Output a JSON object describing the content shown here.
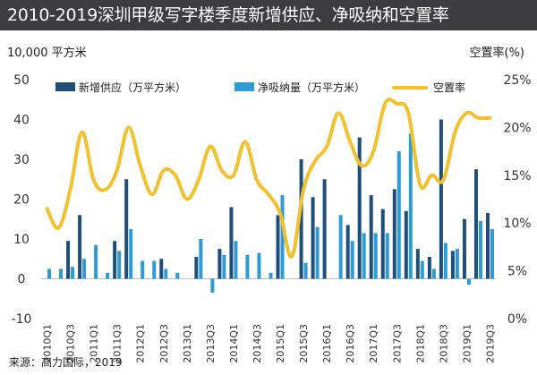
{
  "header": {
    "title": "2010-2019深圳甲级写字楼季度新增供应、净吸纳和空置率"
  },
  "axis_units": {
    "left": "10,000 平方米",
    "right": "空置率(%)"
  },
  "footer": {
    "source": "来源：高力国际，2019"
  },
  "colors": {
    "supply": "#1f4e79",
    "absorption": "#2e9bd6",
    "vacancy": "#f2c12e",
    "title_bg": "#3d3d3f"
  },
  "chart_data": {
    "type": "bar",
    "title": "2010-2019深圳甲级写字楼季度新增供应、净吸纳和空置率",
    "ylabel": "10,000 平方米",
    "y2label": "空置率(%)",
    "ylim": [
      -10,
      50
    ],
    "y2lim": [
      0,
      25
    ],
    "yticks": [
      -10,
      0,
      10,
      20,
      30,
      40,
      50
    ],
    "y2ticks": [
      "0%",
      "5%",
      "10%",
      "15%",
      "20%",
      "25%"
    ],
    "y2tick_values": [
      0,
      5,
      10,
      15,
      20,
      25
    ],
    "legend": [
      "新增供应（万平方米）",
      "净吸纳量（万平方米）",
      "空置率"
    ],
    "categories": [
      "2010Q1",
      "2010Q2",
      "2010Q3",
      "2010Q4",
      "2011Q1",
      "2011Q2",
      "2011Q3",
      "2011Q4",
      "2012Q1",
      "2012Q2",
      "2012Q3",
      "2012Q4",
      "2013Q1",
      "2013Q2",
      "2013Q3",
      "2013Q4",
      "2014Q1",
      "2014Q2",
      "2014Q3",
      "2014Q4",
      "2015Q1",
      "2015Q2",
      "2015Q3",
      "2015Q4",
      "2016Q1",
      "2016Q2",
      "2016Q3",
      "2016Q4",
      "2017Q1",
      "2017Q2",
      "2017Q3",
      "2017Q4",
      "2018Q1",
      "2018Q2",
      "2018Q3",
      "2018Q4",
      "2019Q1",
      "2019Q2",
      "2019Q3"
    ],
    "xtick_labels": [
      "2010Q1",
      "2010Q3",
      "2011Q1",
      "2011Q3",
      "2012Q1",
      "2012Q3",
      "2013Q1",
      "2013Q3",
      "2014Q1",
      "2014Q3",
      "2015Q1",
      "2015Q3",
      "2016Q1",
      "2016Q3",
      "2017Q1",
      "2017Q3",
      "2018Q1",
      "2018Q3",
      "2019Q1",
      "2019Q3"
    ],
    "series": [
      {
        "name": "新增供应（万平方米）",
        "type": "bar",
        "values": [
          0,
          0,
          9.5,
          16,
          0,
          0,
          9.5,
          25,
          0,
          0,
          5,
          0,
          0,
          5.5,
          0,
          7.5,
          18,
          0,
          0,
          0,
          16,
          0,
          30,
          20.5,
          25,
          0,
          13.5,
          35.5,
          21,
          17.5,
          22.5,
          17,
          7.5,
          5.5,
          40,
          7,
          15,
          27.5,
          16.5
        ]
      },
      {
        "name": "净吸纳量（万平方米）",
        "type": "bar",
        "values": [
          2.5,
          2.5,
          3,
          5,
          8.5,
          1.5,
          7,
          12.5,
          4.5,
          4.5,
          2.5,
          1.5,
          0,
          10,
          -3.5,
          6,
          9.5,
          6,
          6.5,
          1.5,
          21,
          0,
          4,
          13,
          0,
          16,
          9.5,
          11.5,
          11.5,
          11.5,
          32,
          36.5,
          4.5,
          2.5,
          9,
          7.5,
          -1.5,
          14.5,
          12.5
        ]
      },
      {
        "name": "空置率",
        "type": "line",
        "values": [
          11.5,
          9.5,
          13.5,
          19.5,
          14.5,
          13.5,
          15.5,
          20,
          16,
          13,
          15.5,
          15,
          12.5,
          14.5,
          18,
          15.5,
          15,
          18.5,
          14.5,
          13,
          11,
          6.5,
          13.5,
          16.5,
          18,
          21.5,
          18.5,
          16,
          17.5,
          22.5,
          22.5,
          21.5,
          14,
          15,
          14.5,
          19.5,
          21.5,
          21,
          21
        ]
      }
    ]
  }
}
